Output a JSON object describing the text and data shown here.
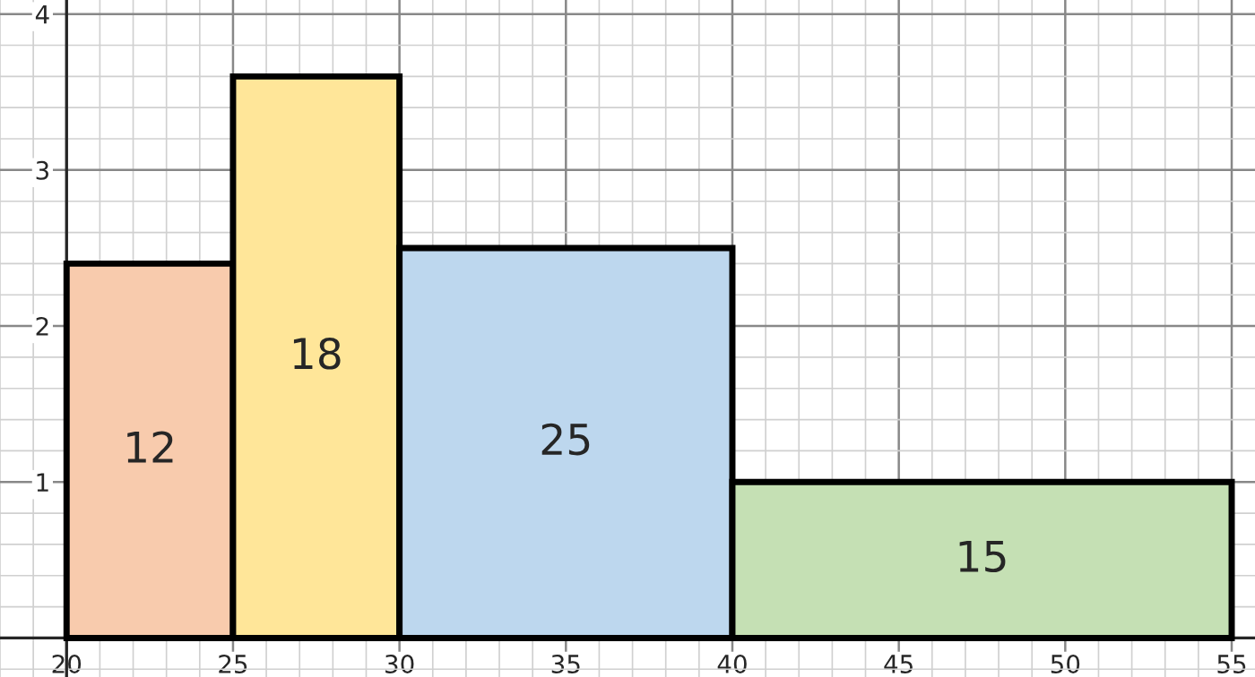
{
  "chart_data": {
    "type": "histogram",
    "bins": [
      20,
      25,
      30,
      40,
      55
    ],
    "values": [
      2.4,
      3.6,
      2.5,
      1.0
    ],
    "annotations": [
      "12",
      "18",
      "25",
      "15"
    ],
    "colors": [
      "#f8cbad",
      "#ffe699",
      "#bdd7ee",
      "#c5e0b4"
    ],
    "xlim": [
      18,
      55.7
    ],
    "ylim": [
      -0.25,
      4.09
    ],
    "xticks": [
      20,
      25,
      30,
      35,
      40,
      45,
      50,
      55
    ],
    "yticks": [
      1,
      2,
      3,
      4
    ],
    "grid": true
  }
}
